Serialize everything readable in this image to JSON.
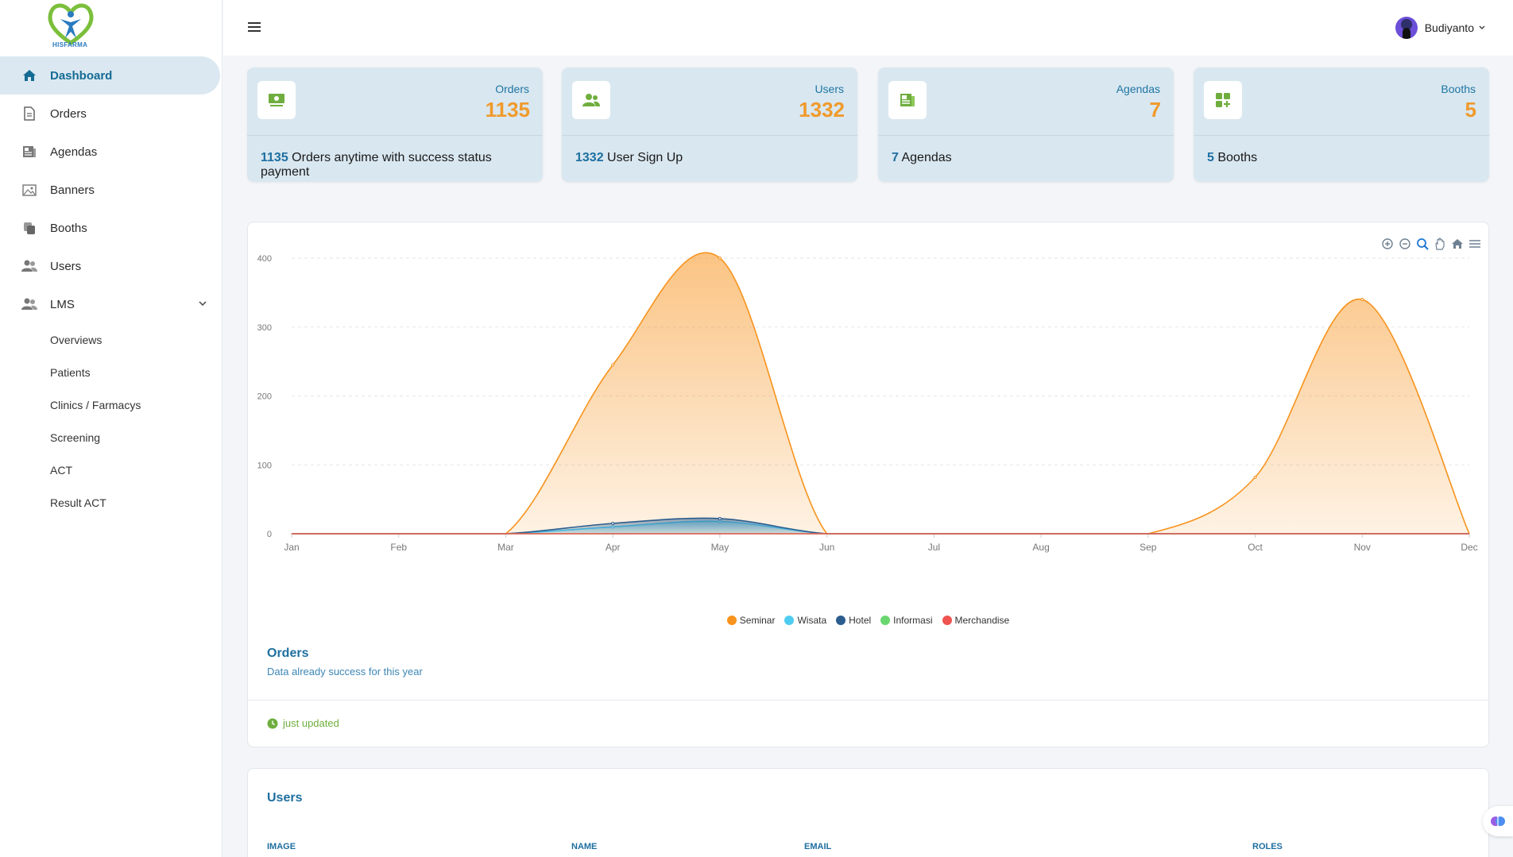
{
  "brand": {
    "logo_text": "HISFARMA",
    "accent": "#146b93"
  },
  "sidebar": {
    "items": [
      {
        "label": "Dashboard",
        "icon": "home-icon",
        "active": true
      },
      {
        "label": "Orders",
        "icon": "file-icon"
      },
      {
        "label": "Agendas",
        "icon": "newspaper-icon"
      },
      {
        "label": "Banners",
        "icon": "image-icon"
      },
      {
        "label": "Booths",
        "icon": "copy-icon"
      },
      {
        "label": "Users",
        "icon": "users-icon"
      },
      {
        "label": "LMS",
        "icon": "users-icon",
        "expanded": true
      }
    ],
    "lms_items": [
      "Overviews",
      "Patients",
      "Clinics / Farmacys",
      "Screening",
      "ACT",
      "Result ACT"
    ]
  },
  "header": {
    "user_name": "Budiyanto"
  },
  "stats": [
    {
      "label": "Orders",
      "value": "1135",
      "foot_value": "1135",
      "foot_text": " Orders anytime with success status payment",
      "icon": "money-icon"
    },
    {
      "label": "Users",
      "value": "1332",
      "foot_value": "1332",
      "foot_text": " User Sign Up",
      "icon": "users-icon"
    },
    {
      "label": "Agendas",
      "value": "7",
      "foot_value": "7",
      "foot_text": " Agendas",
      "icon": "newspaper-icon"
    },
    {
      "label": "Booths",
      "value": "5",
      "foot_value": "5",
      "foot_text": " Booths",
      "icon": "grid-plus-icon"
    }
  ],
  "orders_chart": {
    "title": "Orders",
    "subtitle": "Data already success for this year",
    "footer": "just updated",
    "toolbar": [
      "zoom-in-icon",
      "zoom-out-icon",
      "zoom-select-icon",
      "pan-icon",
      "home-icon",
      "menu-icon"
    ]
  },
  "chart_data": {
    "type": "area",
    "categories": [
      "Jan",
      "Feb",
      "Mar",
      "Apr",
      "May",
      "Jun",
      "Jul",
      "Aug",
      "Sep",
      "Oct",
      "Nov",
      "Dec"
    ],
    "yticks": [
      0,
      100,
      200,
      300,
      400
    ],
    "ylim": [
      0,
      400
    ],
    "grid": true,
    "legend": "bottom-center",
    "series": [
      {
        "name": "Seminar",
        "color": "#f7931e",
        "values": [
          0,
          0,
          0,
          245,
          400,
          0,
          0,
          0,
          0,
          82,
          340,
          0
        ]
      },
      {
        "name": "Wisata",
        "color": "#4fcdf0",
        "values": [
          0,
          0,
          0,
          10,
          18,
          0,
          0,
          0,
          0,
          0,
          0,
          0
        ]
      },
      {
        "name": "Hotel",
        "color": "#2c5d8f",
        "values": [
          0,
          0,
          0,
          15,
          22,
          0,
          0,
          0,
          0,
          0,
          0,
          0
        ]
      },
      {
        "name": "Informasi",
        "color": "#6ad66f",
        "values": [
          0,
          0,
          0,
          0,
          0,
          0,
          0,
          0,
          0,
          0,
          0,
          0
        ]
      },
      {
        "name": "Merchandise",
        "color": "#ee5450",
        "values": [
          0,
          0,
          0,
          0,
          0,
          0,
          0,
          0,
          0,
          0,
          0,
          0
        ]
      }
    ]
  },
  "users_table": {
    "title": "Users",
    "columns": [
      "IMAGE",
      "NAME",
      "EMAIL",
      "ROLES"
    ]
  }
}
